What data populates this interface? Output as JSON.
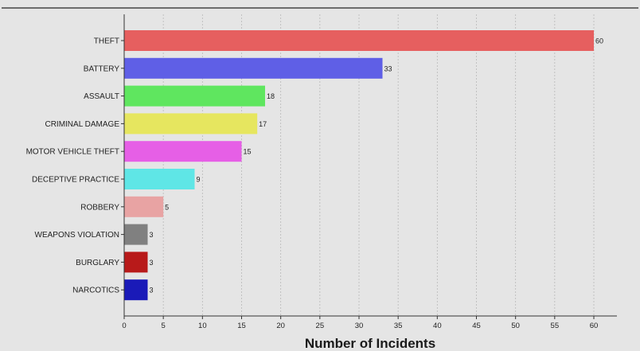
{
  "chart_data": {
    "type": "bar",
    "orientation": "horizontal",
    "categories": [
      "THEFT",
      "BATTERY",
      "ASSAULT",
      "CRIMINAL DAMAGE",
      "MOTOR VEHICLE THEFT",
      "DECEPTIVE PRACTICE",
      "ROBBERY",
      "WEAPONS VIOLATION",
      "BURGLARY",
      "NARCOTICS"
    ],
    "values": [
      60,
      33,
      18,
      17,
      15,
      9,
      5,
      3,
      3,
      3
    ],
    "colors": [
      "#e65f5f",
      "#5f5fe6",
      "#5fe65f",
      "#e6e65f",
      "#e65fe6",
      "#5fe6e6",
      "#e8a3a3",
      "#808080",
      "#b81a1a",
      "#1a1ab8"
    ],
    "title": "",
    "xlabel": "Number of Incidents",
    "ylabel": "",
    "xlim": [
      0,
      63
    ],
    "x_ticks": [
      0,
      5,
      10,
      15,
      20,
      25,
      30,
      35,
      40,
      45,
      50,
      55,
      60
    ],
    "grid": "vertical dashed",
    "legend": "none"
  }
}
